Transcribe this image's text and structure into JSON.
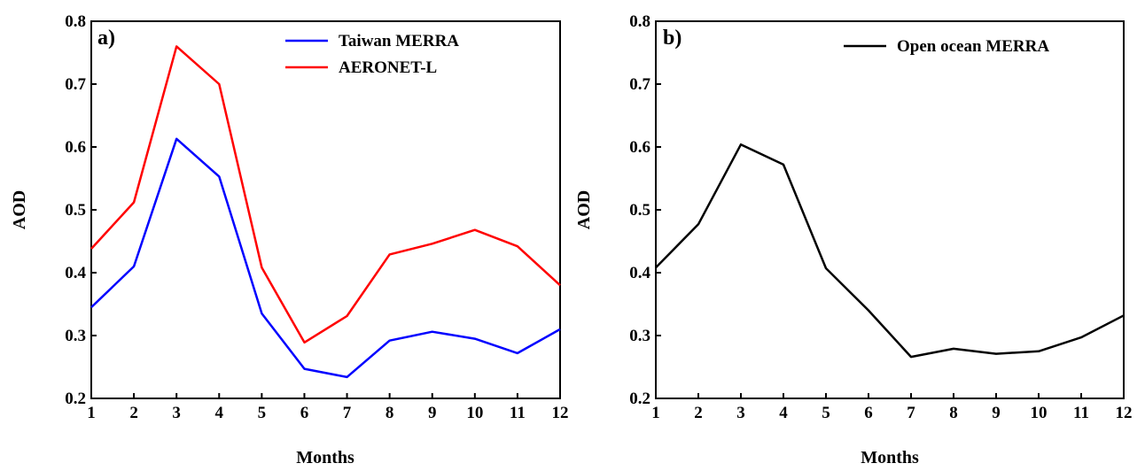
{
  "chart_data": [
    {
      "type": "line",
      "panel_label": "a)",
      "xlabel": "Months",
      "ylabel": "AOD",
      "x": [
        1,
        2,
        3,
        4,
        5,
        6,
        7,
        8,
        9,
        10,
        11,
        12
      ],
      "x_tick_labels": [
        "1",
        "2",
        "3",
        "4",
        "5",
        "6",
        "7",
        "8",
        "9",
        "10",
        "11",
        "12"
      ],
      "xlim": [
        1,
        12
      ],
      "ylim": [
        0.2,
        0.8
      ],
      "y_tick_labels": [
        "0.2",
        "0.3",
        "0.4",
        "0.5",
        "0.6",
        "0.7",
        "0.8"
      ],
      "grid": false,
      "legend_position": "top-right",
      "series": [
        {
          "name": "Taiwan MERRA",
          "color": "#0000ff",
          "values": [
            0.345,
            0.41,
            0.613,
            0.553,
            0.335,
            0.247,
            0.234,
            0.292,
            0.306,
            0.295,
            0.272,
            0.31
          ]
        },
        {
          "name": "AERONET-L",
          "color": "#ff0000",
          "values": [
            0.438,
            0.512,
            0.76,
            0.7,
            0.408,
            0.289,
            0.331,
            0.429,
            0.446,
            0.468,
            0.442,
            0.38
          ]
        }
      ]
    },
    {
      "type": "line",
      "panel_label": "b)",
      "xlabel": "Months",
      "ylabel": "AOD",
      "x": [
        1,
        2,
        3,
        4,
        5,
        6,
        7,
        8,
        9,
        10,
        11,
        12
      ],
      "x_tick_labels": [
        "1",
        "2",
        "3",
        "4",
        "5",
        "6",
        "7",
        "8",
        "9",
        "10",
        "11",
        "12"
      ],
      "xlim": [
        1,
        12
      ],
      "ylim": [
        0.2,
        0.8
      ],
      "y_tick_labels": [
        "0.2",
        "0.3",
        "0.4",
        "0.5",
        "0.6",
        "0.7",
        "0.8"
      ],
      "grid": false,
      "legend_position": "top-right",
      "series": [
        {
          "name": "Open ocean MERRA",
          "color": "#000000",
          "values": [
            0.408,
            0.477,
            0.604,
            0.572,
            0.407,
            0.34,
            0.266,
            0.279,
            0.271,
            0.275,
            0.297,
            0.332
          ]
        }
      ]
    }
  ]
}
